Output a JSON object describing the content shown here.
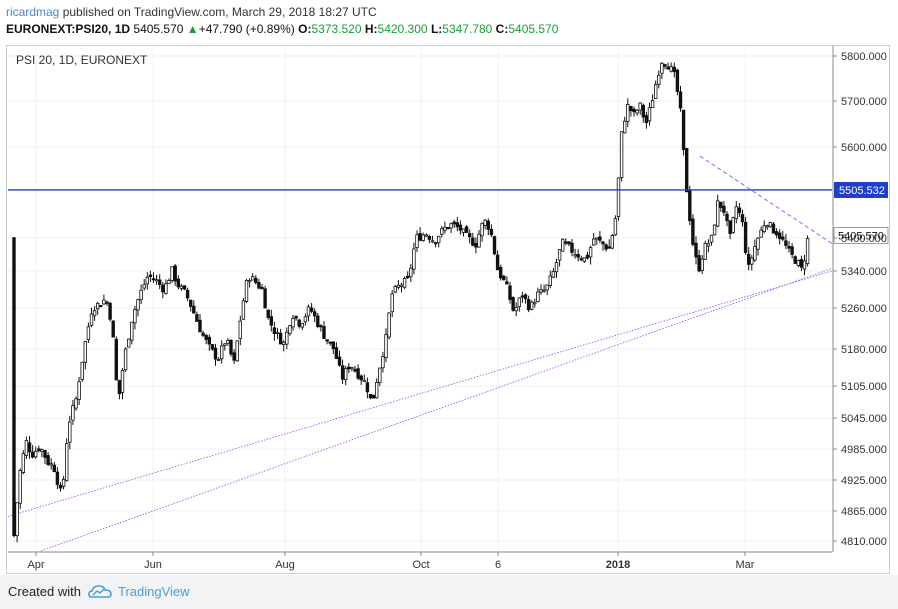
{
  "header": {
    "author": "ricardmag",
    "published_text": "published on TradingView.com, March 29, 2018 18:27 UTC",
    "symbol": "EURONEXT:PSI20, 1D",
    "last": "5405.570",
    "change_arrow": "▲",
    "change": "+47.790 (+0.89%)",
    "o_label": "O:",
    "o_value": "5373.520",
    "h_label": "H:",
    "h_value": "5420.300",
    "l_label": "L:",
    "l_value": "5347.780",
    "c_label": "C:",
    "c_value": "5405.570"
  },
  "legend": "PSI 20, 1D, EURONEXT",
  "footer": {
    "created_with": "Created with",
    "brand": "TradingView"
  },
  "colors": {
    "up_candle": "#ffffff",
    "down_candle": "#111111",
    "horizontal_line": "#1f3ec9",
    "trendline": "#5b6bf0",
    "brand": "#4a9fd8"
  },
  "chart_data": {
    "type": "candlestick",
    "title": "PSI 20, 1D, EURONEXT",
    "x_tick_labels": [
      "Apr",
      "Jun",
      "Aug",
      "Oct",
      "6",
      "2018",
      "Mar"
    ],
    "y_tick_labels": [
      "5800.000",
      "5700.000",
      "5600.000",
      "5400.000",
      "5340.000",
      "5260.000",
      "5180.000",
      "5105.000",
      "5045.000",
      "4985.000",
      "4925.000",
      "4865.000",
      "4810.000"
    ],
    "last_price_label": "5405.570",
    "horizontal_line_label": "5505.532",
    "horizontal_line_value": 5505.532,
    "ohlc_samples": [
      {
        "o": 4805,
        "h": 4860,
        "l": 4800,
        "c": 4850
      },
      {
        "o": 4860,
        "h": 4980,
        "l": 4855,
        "c": 4975
      },
      {
        "o": 4990,
        "h": 5020,
        "l": 4950,
        "c": 4985
      },
      {
        "o": 4970,
        "h": 4990,
        "l": 4880,
        "c": 4900
      },
      {
        "o": 4970,
        "h": 5090,
        "l": 4960,
        "c": 5080
      },
      {
        "o": 5100,
        "h": 5260,
        "l": 5090,
        "c": 5240
      },
      {
        "o": 5250,
        "h": 5300,
        "l": 5230,
        "c": 5280
      },
      {
        "o": 5280,
        "h": 5350,
        "l": 5260,
        "c": 5300
      },
      {
        "o": 5340,
        "h": 5370,
        "l": 5300,
        "c": 5360
      },
      {
        "o": 5220,
        "h": 5260,
        "l": 5130,
        "c": 5150
      },
      {
        "o": 5260,
        "h": 5340,
        "l": 5240,
        "c": 5320
      },
      {
        "o": 5180,
        "h": 5280,
        "l": 5170,
        "c": 5260
      },
      {
        "o": 5080,
        "h": 5120,
        "l": 5040,
        "c": 5060
      },
      {
        "o": 5150,
        "h": 5205,
        "l": 5100,
        "c": 5190
      },
      {
        "o": 5300,
        "h": 5360,
        "l": 5280,
        "c": 5350
      },
      {
        "o": 5395,
        "h": 5440,
        "l": 5370,
        "c": 5420
      },
      {
        "o": 5380,
        "h": 5480,
        "l": 5350,
        "c": 5400
      },
      {
        "o": 5380,
        "h": 5430,
        "l": 5240,
        "c": 5260
      },
      {
        "o": 5360,
        "h": 5420,
        "l": 5330,
        "c": 5395
      },
      {
        "o": 5420,
        "h": 5580,
        "l": 5400,
        "c": 5560
      },
      {
        "o": 5650,
        "h": 5790,
        "l": 5600,
        "c": 5780
      },
      {
        "o": 5750,
        "h": 5790,
        "l": 5500,
        "c": 5520
      },
      {
        "o": 5450,
        "h": 5480,
        "l": 5250,
        "c": 5330
      },
      {
        "o": 5420,
        "h": 5520,
        "l": 5380,
        "c": 5470
      },
      {
        "o": 5480,
        "h": 5520,
        "l": 5300,
        "c": 5330
      },
      {
        "o": 5380,
        "h": 5460,
        "l": 5300,
        "c": 5430
      },
      {
        "o": 5320,
        "h": 5400,
        "l": 5290,
        "c": 5360
      },
      {
        "o": 5373.52,
        "h": 5420.3,
        "l": 5347.78,
        "c": 5405.57
      }
    ]
  }
}
